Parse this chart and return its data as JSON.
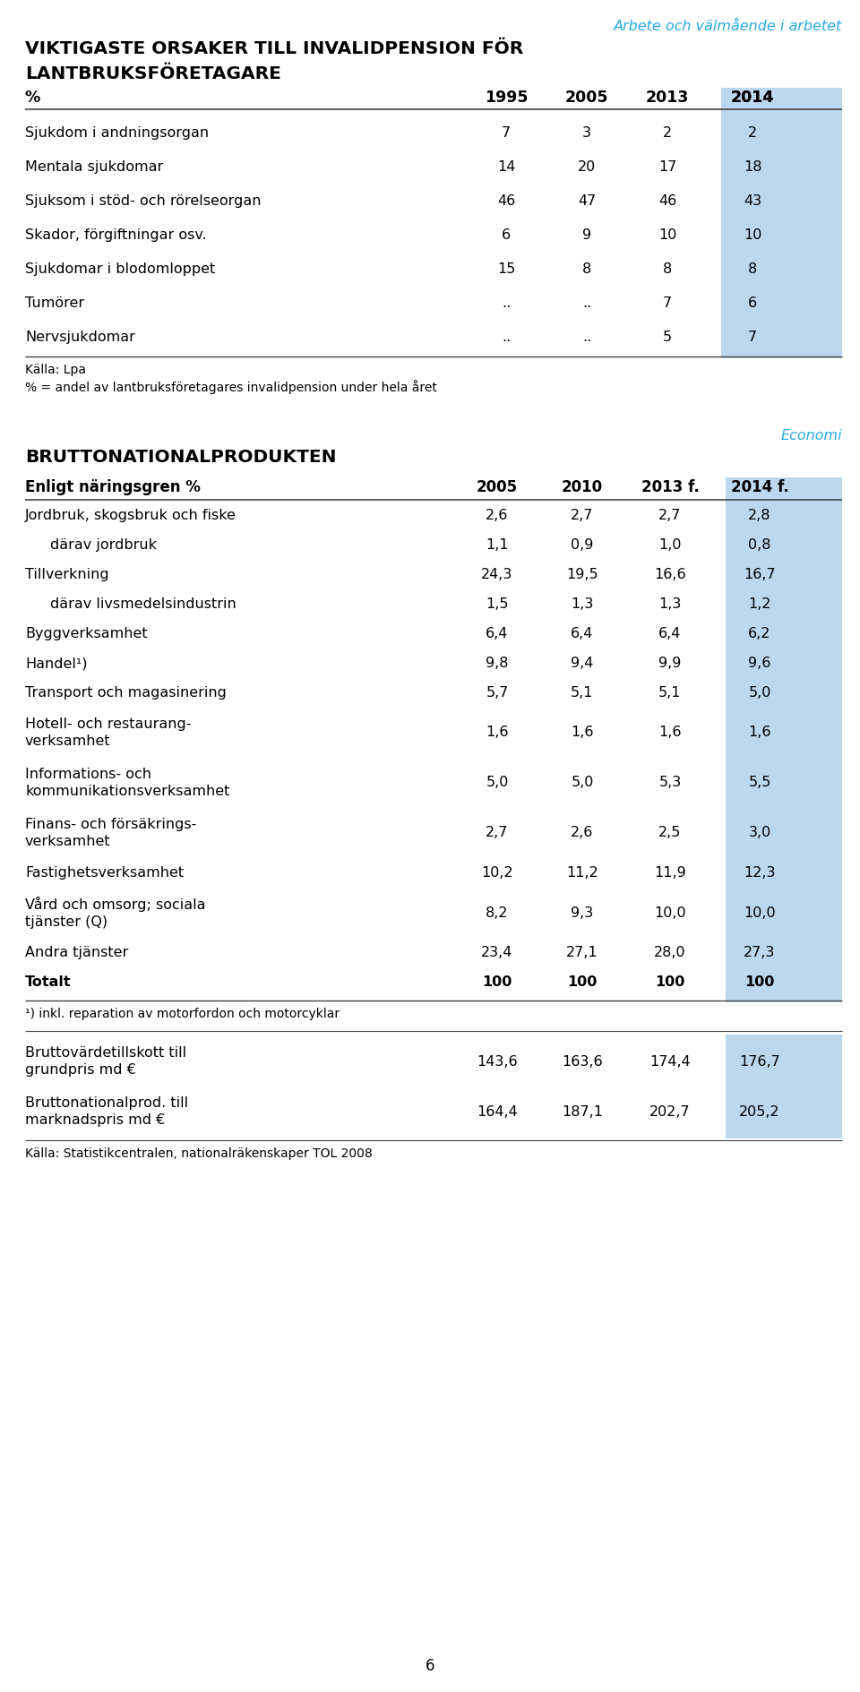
{
  "page_header": "Arbete och välmående i arbetet",
  "section1_title_line1": "VIKTIGASTE ORSAKER TILL INVALIDPENSION FÖR",
  "section1_title_line2": "LANTBRUKSFÖRETAGARE",
  "table1_headers": [
    "%",
    "1995",
    "2005",
    "2013",
    "2014"
  ],
  "table1_rows": [
    [
      "Sjukdom i andningsorgan",
      "7",
      "3",
      "2",
      "2"
    ],
    [
      "Mentala sjukdomar",
      "14",
      "20",
      "17",
      "18"
    ],
    [
      "Sjuksom i stöd- och rörelseorgan",
      "46",
      "47",
      "46",
      "43"
    ],
    [
      "Skador, förgiftningar osv.",
      "6",
      "9",
      "10",
      "10"
    ],
    [
      "Sjukdomar i blodomloppet",
      "15",
      "8",
      "8",
      "8"
    ],
    [
      "Tumörer",
      "..",
      "..",
      "7",
      "6"
    ],
    [
      "Nervsjukdomar",
      "..",
      "..",
      "5",
      "7"
    ]
  ],
  "table1_source_line1": "Källa: Lpa",
  "table1_source_line2": "% = andel av lantbruksföretagares invalidpension under hela året",
  "section2_header": "Economi",
  "section2_title": "BRUTTONATIONALPRODUKTEN",
  "table2_headers": [
    "Enligt näringsgren %",
    "2005",
    "2010",
    "2013 f.",
    "2014 f."
  ],
  "table2_rows": [
    [
      "Jordbruk, skogsbruk och fiske",
      "2,6",
      "2,7",
      "2,7",
      "2,8"
    ],
    [
      "  därav jordbruk",
      "1,1",
      "0,9",
      "1,0",
      "0,8"
    ],
    [
      "Tillverkning",
      "24,3",
      "19,5",
      "16,6",
      "16,7"
    ],
    [
      "  därav livsmedelsindustrin",
      "1,5",
      "1,3",
      "1,3",
      "1,2"
    ],
    [
      "Byggverksamhet",
      "6,4",
      "6,4",
      "6,4",
      "6,2"
    ],
    [
      "Handel¹)",
      "9,8",
      "9,4",
      "9,9",
      "9,6"
    ],
    [
      "Transport och magasinering",
      "5,7",
      "5,1",
      "5,1",
      "5,0"
    ],
    [
      "Hotell- och restaurang-\nverksamhet",
      "1,6",
      "1,6",
      "1,6",
      "1,6"
    ],
    [
      "Informations- och\nkommunikationsverksamhet",
      "5,0",
      "5,0",
      "5,3",
      "5,5"
    ],
    [
      "Finans- och försäkrings-\nverksamhet",
      "2,7",
      "2,6",
      "2,5",
      "3,0"
    ],
    [
      "Fastighetsverksamhet",
      "10,2",
      "11,2",
      "11,9",
      "12,3"
    ],
    [
      "Vård och omsorg; sociala\ntjänster (Q)",
      "8,2",
      "9,3",
      "10,0",
      "10,0"
    ],
    [
      "Andra tjänster",
      "23,4",
      "27,1",
      "28,0",
      "27,3"
    ],
    [
      "Totalt",
      "100",
      "100",
      "100",
      "100"
    ]
  ],
  "table2_footnote": "¹) inkl. reparation av motorfordon och motorcyklar",
  "table2_rows2": [
    [
      "Bruttovärdetillskott till\ngrundpris md €",
      "143,6",
      "163,6",
      "174,4",
      "176,7"
    ],
    [
      "Bruttonationalprod. till\nmarknadspris md €",
      "164,4",
      "187,1",
      "202,7",
      "205,2"
    ]
  ],
  "table2_source": "Källa: Statistikcentralen, nationalräkenskaper TOL 2008",
  "page_number": "6",
  "highlight_color": "#bdd7ee",
  "header_color": "#29abe2",
  "background_color": "#ffffff",
  "text_color": "#000000"
}
